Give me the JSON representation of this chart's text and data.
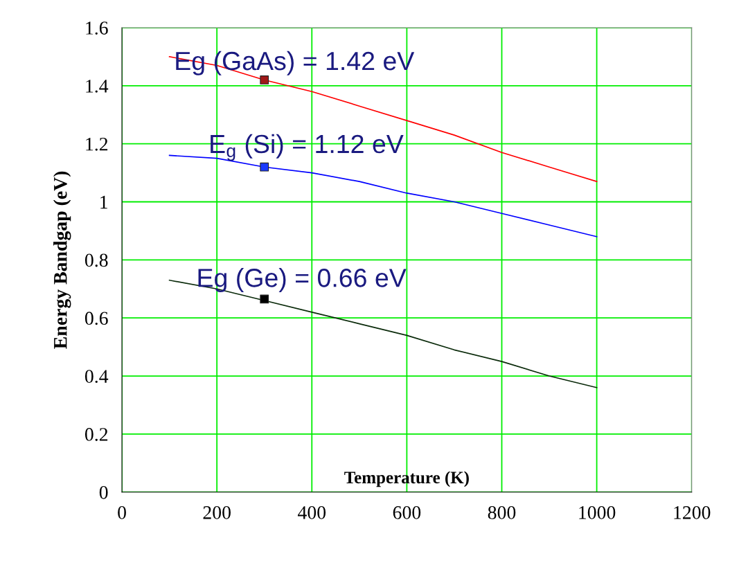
{
  "chart_data": {
    "type": "line",
    "xlabel": "Temperature (K)",
    "ylabel": "Energy Bandgap (eV)",
    "xlim": [
      0,
      1200
    ],
    "xticks": [
      0,
      200,
      400,
      600,
      800,
      1000,
      1200
    ],
    "ylim": [
      0,
      1.6
    ],
    "yticks": [
      0,
      0.2,
      0.4,
      0.6,
      0.8,
      1,
      1.2,
      1.4,
      1.6
    ],
    "grid": true,
    "marker": "none",
    "line_style": "solid",
    "series": [
      {
        "color": "#ff0000",
        "x": [
          100,
          200,
          300,
          400,
          500,
          600,
          700,
          800,
          900,
          1000
        ],
        "values": [
          1.5,
          1.47,
          1.42,
          1.38,
          1.33,
          1.28,
          1.23,
          1.17,
          1.12,
          1.07
        ]
      },
      {
        "color": "#0000ff",
        "x": [
          100,
          200,
          300,
          400,
          500,
          600,
          700,
          800,
          900,
          1000
        ],
        "values": [
          1.16,
          1.15,
          1.12,
          1.1,
          1.07,
          1.03,
          1.0,
          0.96,
          0.92,
          0.88
        ]
      },
      {
        "color": "#0a2a0a",
        "x": [
          100,
          200,
          300,
          400,
          500,
          600,
          700,
          800,
          900,
          1000
        ],
        "values": [
          0.73,
          0.7,
          0.66,
          0.62,
          0.58,
          0.54,
          0.49,
          0.45,
          0.4,
          0.36
        ]
      },
      {
        "type": "scatter",
        "marker": "square",
        "x": [
          300,
          300,
          300
        ],
        "values": [
          1.42,
          1.12,
          0.665
        ],
        "colors": [
          "#a01818",
          "#1a3aff",
          "#000000"
        ]
      }
    ],
    "annotations": [
      "Eg (GaAs) = 1.42 eV",
      "E$_{g}$ (Si) = 1.12 eV",
      "Eg (Ge) = 0.66 eV"
    ]
  }
}
